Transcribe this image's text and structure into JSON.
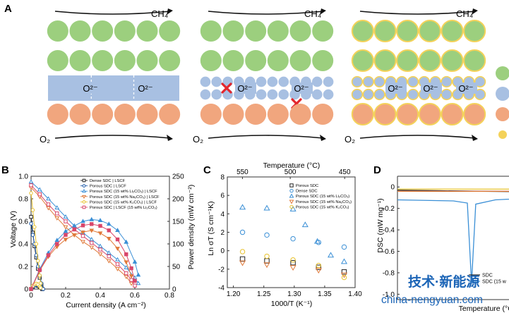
{
  "panels": {
    "A": {
      "label": "A",
      "top_gas": "CH₄",
      "bottom_gas": "O₂",
      "ion": "O²⁻"
    },
    "B": {
      "label": "B"
    },
    "C": {
      "label": "C"
    },
    "D": {
      "label": "D"
    }
  },
  "colors": {
    "anode": "#9ccf7e",
    "electrolyte": "#a8c0e2",
    "cathode": "#f1a67e",
    "carbonate": "#f4d25a",
    "block_mark": "#e3262c",
    "series_dense": "#222222",
    "series_porous": "#1e5aa8",
    "series_li": "#3a8fd6",
    "series_na": "#e07a3a",
    "series_k": "#e8c22e",
    "series_li_cathode": "#d9466a"
  },
  "chart_data": [
    {
      "panel": "B",
      "type": "line",
      "xlabel": "Current density (A cm⁻²)",
      "ylabel": "Voltage (V)",
      "y2label": "Power density (mW cm⁻²)",
      "xlim": [
        0,
        0.8
      ],
      "ylim": [
        0,
        1.0
      ],
      "y2lim": [
        0,
        250
      ],
      "xticks": [
        "0",
        "0.2",
        "0.4",
        "0.6",
        "0.8"
      ],
      "yticks": [
        "0",
        "0.2",
        "0.4",
        "0.6",
        "0.8",
        "1.0"
      ],
      "y2ticks": [
        "0",
        "50",
        "100",
        "150",
        "200",
        "250"
      ],
      "legend": [
        "Dense SDC | LSCF",
        "Porous SDC | LSCF",
        "Porous SDC (15 wt% Li₂CO₃) | LSCF",
        "Porous SDC (15 wt% Na₂CO₃) | LSCF",
        "Porous SDC (15 wt% K₂CO₃) | LSCF",
        "Porous SDC | LSCF (15 wt% Li₂CO₃)"
      ],
      "series": [
        {
          "name": "Dense SDC | LSCF",
          "color_key": "series_dense",
          "marker": "s",
          "voltage": [
            [
              0,
              0.64
            ],
            [
              0.01,
              0.5
            ],
            [
              0.02,
              0.38
            ],
            [
              0.03,
              0.28
            ],
            [
              0.04,
              0.18
            ],
            [
              0.05,
              0.1
            ],
            [
              0.06,
              0.04
            ],
            [
              0.065,
              0.0
            ]
          ],
          "power": [
            [
              0,
              0
            ],
            [
              0.01,
              5
            ],
            [
              0.02,
              8
            ],
            [
              0.03,
              8.4
            ],
            [
              0.04,
              7.2
            ],
            [
              0.05,
              5
            ],
            [
              0.06,
              2.4
            ],
            [
              0.065,
              0
            ]
          ]
        },
        {
          "name": "Porous SDC | LSCF",
          "color_key": "series_porous",
          "marker": "o",
          "voltage": [
            [
              0,
              0.58
            ],
            [
              0.01,
              0.48
            ],
            [
              0.02,
              0.4
            ],
            [
              0.03,
              0.3
            ],
            [
              0.04,
              0.2
            ],
            [
              0.05,
              0.12
            ],
            [
              0.06,
              0.05
            ],
            [
              0.07,
              0.0
            ]
          ],
          "power": [
            [
              0,
              0
            ],
            [
              0.01,
              4.8
            ],
            [
              0.02,
              8
            ],
            [
              0.03,
              9
            ],
            [
              0.04,
              8
            ],
            [
              0.05,
              6
            ],
            [
              0.06,
              3
            ],
            [
              0.07,
              0
            ]
          ]
        },
        {
          "name": "Porous SDC (15 wt% Li₂CO₃) | LSCF",
          "color_key": "series_li",
          "marker": "^",
          "voltage": [
            [
              0,
              0.95
            ],
            [
              0.05,
              0.88
            ],
            [
              0.1,
              0.8
            ],
            [
              0.15,
              0.72
            ],
            [
              0.2,
              0.64
            ],
            [
              0.25,
              0.56
            ],
            [
              0.3,
              0.5
            ],
            [
              0.35,
              0.44
            ],
            [
              0.4,
              0.38
            ],
            [
              0.45,
              0.32
            ],
            [
              0.5,
              0.26
            ],
            [
              0.55,
              0.19
            ],
            [
              0.6,
              0.1
            ],
            [
              0.62,
              0.05
            ]
          ],
          "power": [
            [
              0,
              0
            ],
            [
              0.05,
              44
            ],
            [
              0.1,
              80
            ],
            [
              0.15,
              108
            ],
            [
              0.2,
              128
            ],
            [
              0.25,
              140
            ],
            [
              0.3,
              150
            ],
            [
              0.35,
              154
            ],
            [
              0.4,
              152
            ],
            [
              0.45,
              144
            ],
            [
              0.5,
              130
            ],
            [
              0.55,
              104
            ],
            [
              0.6,
              60
            ],
            [
              0.62,
              31
            ]
          ]
        },
        {
          "name": "Porous SDC (15 wt% Na₂CO₃) | LSCF",
          "color_key": "series_na",
          "marker": "v",
          "voltage": [
            [
              0,
              0.9
            ],
            [
              0.05,
              0.82
            ],
            [
              0.1,
              0.72
            ],
            [
              0.15,
              0.63
            ],
            [
              0.2,
              0.55
            ],
            [
              0.25,
              0.48
            ],
            [
              0.3,
              0.42
            ],
            [
              0.35,
              0.37
            ],
            [
              0.4,
              0.31
            ],
            [
              0.45,
              0.25
            ],
            [
              0.5,
              0.18
            ],
            [
              0.55,
              0.11
            ],
            [
              0.58,
              0.05
            ]
          ],
          "power": [
            [
              0,
              0
            ],
            [
              0.05,
              41
            ],
            [
              0.1,
              72
            ],
            [
              0.15,
              94
            ],
            [
              0.2,
              110
            ],
            [
              0.25,
              120
            ],
            [
              0.3,
              126
            ],
            [
              0.35,
              130
            ],
            [
              0.4,
              124
            ],
            [
              0.45,
              112
            ],
            [
              0.5,
              90
            ],
            [
              0.55,
              60
            ],
            [
              0.58,
              29
            ]
          ]
        },
        {
          "name": "Porous SDC (15 wt% K₂CO₃) | LSCF",
          "color_key": "series_k",
          "marker": "o",
          "voltage": [
            [
              0,
              0.85
            ],
            [
              0.01,
              0.7
            ],
            [
              0.02,
              0.55
            ],
            [
              0.03,
              0.4
            ],
            [
              0.04,
              0.25
            ],
            [
              0.05,
              0.12
            ],
            [
              0.055,
              0.05
            ]
          ],
          "power": [
            [
              0,
              0
            ],
            [
              0.01,
              7
            ],
            [
              0.02,
              11
            ],
            [
              0.03,
              12
            ],
            [
              0.04,
              10
            ],
            [
              0.05,
              6
            ],
            [
              0.055,
              2.8
            ]
          ]
        },
        {
          "name": "Porous SDC | LSCF (15 wt% Li₂CO₃)",
          "color_key": "series_li_cathode",
          "marker": "s",
          "voltage": [
            [
              0,
              0.92
            ],
            [
              0.05,
              0.84
            ],
            [
              0.1,
              0.75
            ],
            [
              0.15,
              0.67
            ],
            [
              0.2,
              0.6
            ],
            [
              0.25,
              0.53
            ],
            [
              0.3,
              0.47
            ],
            [
              0.35,
              0.41
            ],
            [
              0.4,
              0.35
            ],
            [
              0.45,
              0.29
            ],
            [
              0.5,
              0.22
            ],
            [
              0.55,
              0.14
            ],
            [
              0.58,
              0.08
            ],
            [
              0.6,
              0.03
            ]
          ],
          "power": [
            [
              0,
              0
            ],
            [
              0.05,
              42
            ],
            [
              0.1,
              75
            ],
            [
              0.15,
              100
            ],
            [
              0.2,
              120
            ],
            [
              0.25,
              132
            ],
            [
              0.3,
              141
            ],
            [
              0.35,
              144
            ],
            [
              0.4,
              140
            ],
            [
              0.45,
              130
            ],
            [
              0.5,
              110
            ],
            [
              0.55,
              77
            ],
            [
              0.58,
              46
            ],
            [
              0.6,
              18
            ]
          ]
        }
      ]
    },
    {
      "panel": "C",
      "type": "scatter",
      "xlabel": "1000/T (K⁻¹)",
      "ylabel": "Ln σT (S cm⁻¹K)",
      "x2label": "Temperature (°C)",
      "xlim": [
        1.19,
        1.4
      ],
      "ylim": [
        -4,
        8
      ],
      "xticks": [
        "1.20",
        "1.25",
        "1.30",
        "1.35",
        "1.40"
      ],
      "yticks": [
        "-4",
        "-2",
        "0",
        "2",
        "4",
        "6",
        "8"
      ],
      "x2ticks": [
        "550",
        "500",
        "450"
      ],
      "legend": [
        "Porous SDC",
        "Dense SDC",
        "Porous SDC (15 wt% Li₂CO₃)",
        "Porous SDC (15 wt% Na₂CO₃)",
        "Porous SDC (15 wt% K₂CO₃)"
      ],
      "series": [
        {
          "name": "Porous SDC",
          "color_key": "series_dense",
          "marker": "s",
          "points": [
            [
              1.215,
              -0.9
            ],
            [
              1.255,
              -1.1
            ],
            [
              1.298,
              -1.3
            ],
            [
              1.34,
              -1.8
            ],
            [
              1.382,
              -2.3
            ]
          ]
        },
        {
          "name": "Dense SDC",
          "color_key": "series_li",
          "marker": "o",
          "points": [
            [
              1.215,
              2.0
            ],
            [
              1.255,
              1.7
            ],
            [
              1.298,
              1.3
            ],
            [
              1.34,
              0.9
            ],
            [
              1.382,
              0.4
            ]
          ]
        },
        {
          "name": "Porous SDC (15 wt% Li₂CO₃)",
          "color_key": "series_li",
          "marker": "^",
          "points": [
            [
              1.215,
              4.7
            ],
            [
              1.255,
              4.6
            ],
            [
              1.298,
              4.5
            ],
            [
              1.318,
              2.8
            ],
            [
              1.338,
              1.0
            ],
            [
              1.36,
              -0.5
            ],
            [
              1.382,
              -1.2
            ]
          ]
        },
        {
          "name": "Porous SDC (15 wt% Na₂CO₃)",
          "color_key": "series_na",
          "marker": "v",
          "points": [
            [
              1.215,
              -1.3
            ],
            [
              1.255,
              -1.5
            ],
            [
              1.298,
              -1.8
            ],
            [
              1.34,
              -2.1
            ],
            [
              1.382,
              -2.6
            ]
          ]
        },
        {
          "name": "Porous SDC (15 wt% K₂CO₃)",
          "color_key": "series_k",
          "marker": "o",
          "points": [
            [
              1.215,
              -0.1
            ],
            [
              1.255,
              -0.6
            ],
            [
              1.298,
              -1.0
            ],
            [
              1.34,
              -1.6
            ],
            [
              1.382,
              -2.9
            ]
          ]
        }
      ]
    },
    {
      "panel": "D",
      "type": "line",
      "ylabel": "DSC (mW mg⁻¹)",
      "xlabel": "Temperature (°C)",
      "yticks": [
        "0",
        "-0.2",
        "-0.4",
        "-0.6",
        "-0.8",
        "-1.0"
      ],
      "ylim": [
        -1.05,
        0.1
      ],
      "legend": [
        "SDC",
        "SDC (15 w"
      ],
      "series": [
        {
          "name": "SDC",
          "color_key": "series_dense",
          "points": [
            [
              0,
              -0.03
            ],
            [
              0.3,
              -0.035
            ],
            [
              0.6,
              -0.04
            ],
            [
              1,
              -0.045
            ]
          ]
        },
        {
          "name": "SDC (15 w",
          "color_key": "series_li",
          "points": [
            [
              0,
              -0.12
            ],
            [
              0.4,
              -0.13
            ],
            [
              0.5,
              -0.15
            ],
            [
              0.53,
              -0.9
            ],
            [
              0.56,
              -0.16
            ],
            [
              0.7,
              -0.12
            ],
            [
              1,
              -0.1
            ]
          ]
        },
        {
          "name": "",
          "color_key": "series_k",
          "points": [
            [
              0,
              -0.02
            ],
            [
              1,
              -0.02
            ]
          ]
        },
        {
          "name": "",
          "color_key": "series_na",
          "points": [
            [
              0,
              -0.04
            ],
            [
              1,
              -0.04
            ]
          ]
        }
      ]
    }
  ],
  "watermark": {
    "line1": "技术·新能源",
    "line2": "china-nengyuan.com"
  }
}
